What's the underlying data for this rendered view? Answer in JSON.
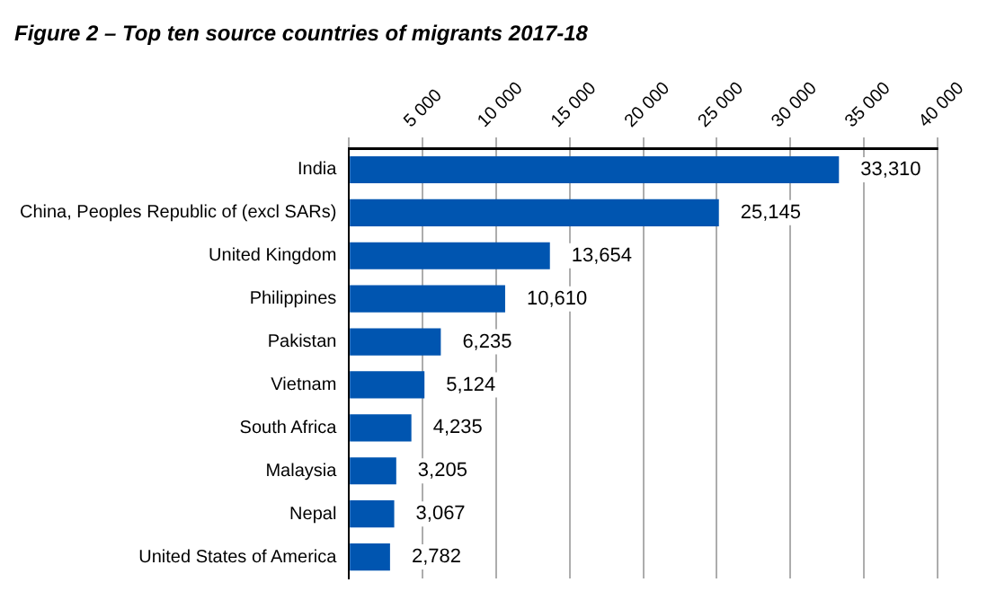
{
  "chart_data": {
    "type": "bar",
    "orientation": "horizontal",
    "title": "Figure 2 – Top ten source countries of migrants 2017-18",
    "categories": [
      "India",
      "China, Peoples Republic of (excl SARs)",
      "United Kingdom",
      "Philippines",
      "Pakistan",
      "Vietnam",
      "South Africa",
      "Malaysia",
      "Nepal",
      "United States of America"
    ],
    "values": [
      33310,
      25145,
      13654,
      10610,
      6235,
      5124,
      4235,
      3205,
      3067,
      2782
    ],
    "value_labels": [
      "33,310",
      "25,145",
      "13,654",
      "10,610",
      "6,235",
      "5,124",
      "4,235",
      "3,205",
      "3,067",
      "2,782"
    ],
    "color": "#0055b0",
    "xlim": [
      0,
      40000
    ],
    "xticks": [
      {
        "value": 0,
        "label": null
      },
      {
        "value": 5000,
        "label": "5 000"
      },
      {
        "value": 10000,
        "label": "10 000"
      },
      {
        "value": 15000,
        "label": "15 000"
      },
      {
        "value": 20000,
        "label": "20 000"
      },
      {
        "value": 25000,
        "label": "25 000"
      },
      {
        "value": 30000,
        "label": "30 000"
      },
      {
        "value": 35000,
        "label": "35 000"
      },
      {
        "value": 40000,
        "label": "40 000"
      }
    ],
    "grid": "x",
    "legend": false
  }
}
